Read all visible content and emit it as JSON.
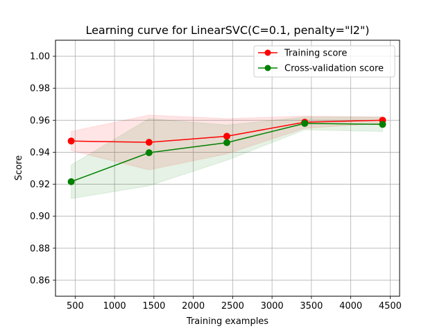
{
  "chart_data": {
    "type": "line",
    "title": "Learning curve for LinearSVC(C=0.1, penalty=\"l2\")",
    "xlabel": "Training examples",
    "ylabel": "Score",
    "xlim": [
      250,
      4620
    ],
    "ylim": [
      0.85,
      1.01
    ],
    "xticks": [
      500,
      1000,
      1500,
      2000,
      2500,
      3000,
      3500,
      4000,
      4500
    ],
    "yticks": [
      0.86,
      0.88,
      0.9,
      0.92,
      0.94,
      0.96,
      0.98,
      1.0
    ],
    "xtick_labels": [
      "500",
      "1000",
      "1500",
      "2000",
      "2500",
      "3000",
      "3500",
      "4000",
      "4500"
    ],
    "ytick_labels": [
      "0.86",
      "0.88",
      "0.90",
      "0.92",
      "0.94",
      "0.96",
      "0.98",
      "1.00"
    ],
    "grid": true,
    "legend_position": "top-right",
    "x": [
      449,
      1438,
      2426,
      3415,
      4404
    ],
    "series": [
      {
        "name": "Training score",
        "color": "#ff0000",
        "band_color": "#ff0000",
        "values": [
          0.947,
          0.9462,
          0.95,
          0.9588,
          0.96
        ],
        "lower": [
          0.941,
          0.929,
          0.939,
          0.955,
          0.958
        ],
        "upper": [
          0.953,
          0.9632,
          0.961,
          0.9626,
          0.962
        ]
      },
      {
        "name": "Cross-validation score",
        "color": "#008000",
        "band_color": "#008000",
        "values": [
          0.9216,
          0.9397,
          0.946,
          0.958,
          0.9574
        ],
        "lower": [
          0.911,
          0.919,
          0.935,
          0.954,
          0.953
        ],
        "upper": [
          0.932,
          0.961,
          0.957,
          0.962,
          0.962
        ]
      }
    ]
  }
}
